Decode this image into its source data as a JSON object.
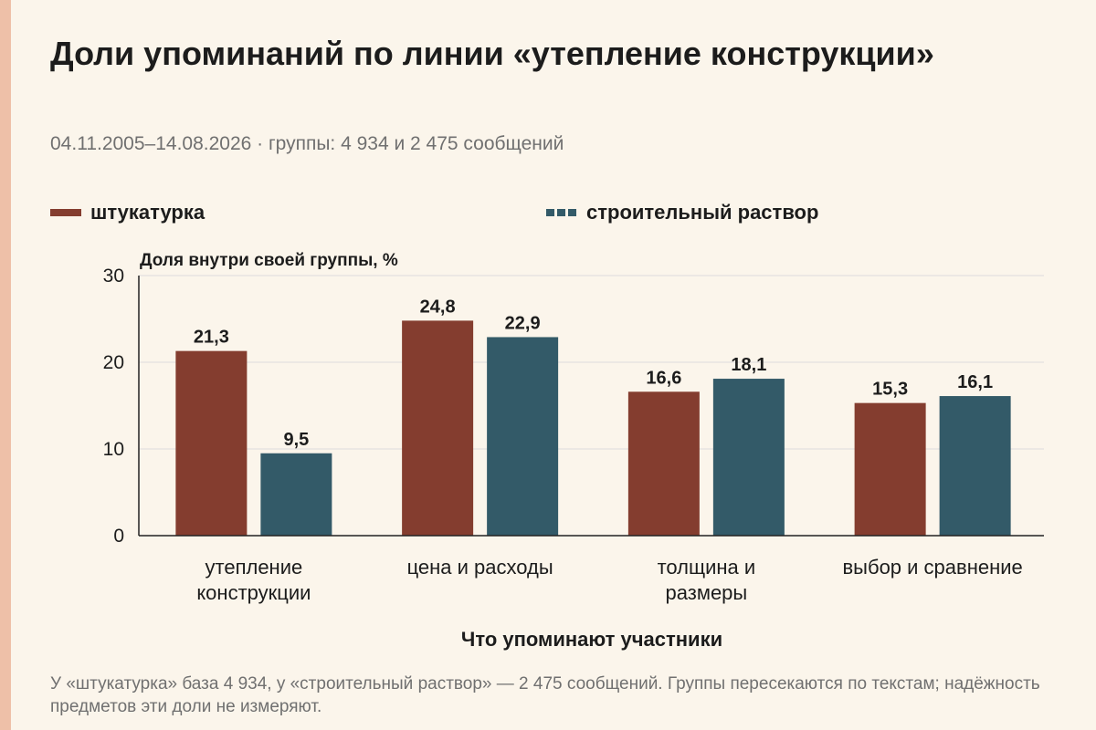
{
  "header": {
    "title": "Доли упоминаний по линии «утепление конструкции»",
    "subtitle": "04.11.2005–14.08.2026 · группы: 4 934 и 2 475 сообщений"
  },
  "footnote": "У «штукатурка» база 4 934, у «строительный раствор» — 2 475 сообщений. Группы пересекаются по текстам; надёжность предметов эти доли не измеряют.",
  "colors": {
    "series1": "#843d2f",
    "series2": "#335a68",
    "grid": "#dcdcdc",
    "axis": "#222222",
    "text": "#1c1c1c",
    "accent": "#eec0a8"
  },
  "chart_data": {
    "type": "bar",
    "title": "Доли упоминаний по линии «утепление конструкции»",
    "subtitle": "04.11.2005–14.08.2026 · группы: 4 934 и 2 475 сообщений",
    "ylabel": "Доля внутри своей группы, %",
    "xlabel": "Что упоминают участники",
    "ylim": [
      0,
      30
    ],
    "yticks": [
      0,
      10,
      20,
      30
    ],
    "grid": true,
    "legend_position": "top",
    "categories": [
      [
        "утепление",
        "конструкции"
      ],
      [
        "цена и расходы"
      ],
      [
        "толщина и",
        "размеры"
      ],
      [
        "выбор и сравнение"
      ]
    ],
    "series": [
      {
        "name": "штукатурка",
        "values": [
          21.3,
          24.8,
          16.6,
          15.3
        ],
        "labels": [
          "21,3",
          "24,8",
          "16,6",
          "15,3"
        ]
      },
      {
        "name": "строительный раствор",
        "values": [
          9.5,
          22.9,
          18.1,
          16.1
        ],
        "labels": [
          "9,5",
          "22,9",
          "18,1",
          "16,1"
        ]
      }
    ]
  }
}
